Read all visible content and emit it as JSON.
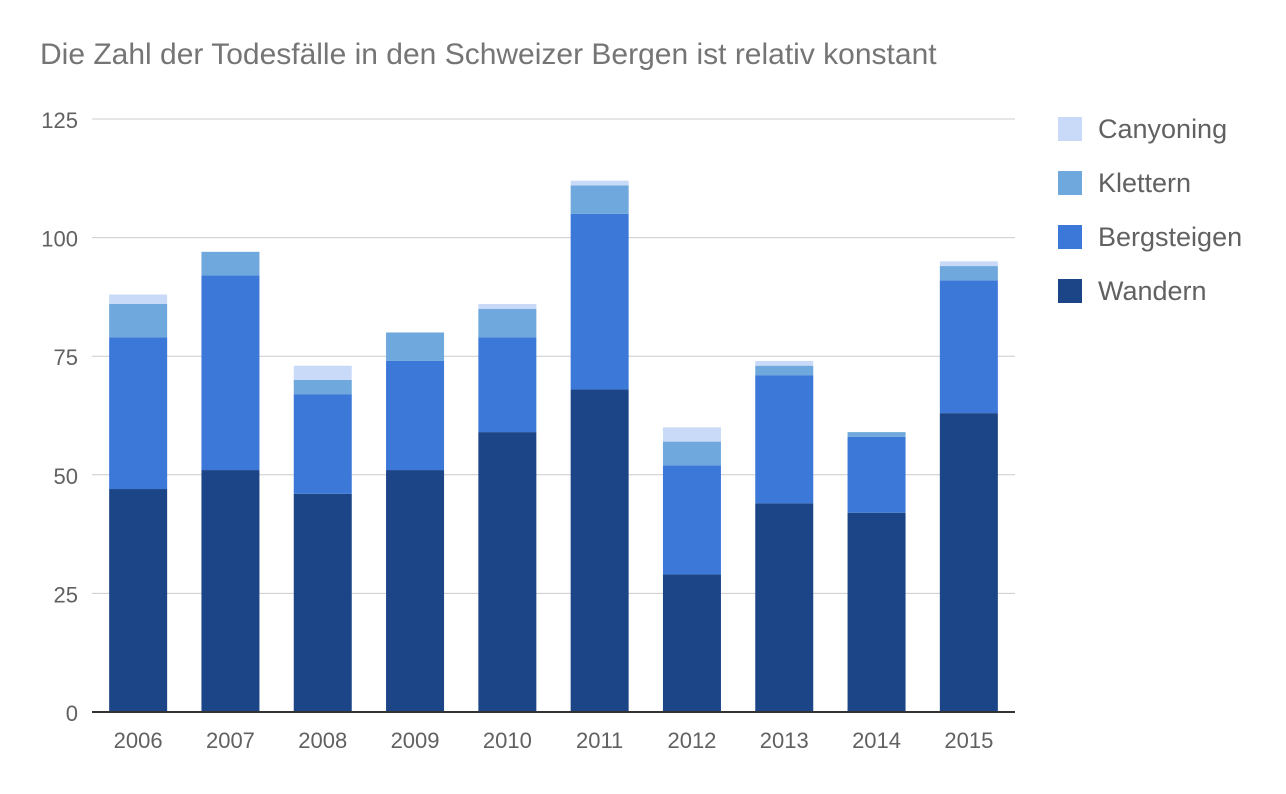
{
  "chart_data": {
    "type": "bar",
    "stacked": true,
    "title": "Die Zahl der Todesfälle in den Schweizer Bergen ist relativ konstant",
    "xlabel": "",
    "ylabel": "",
    "ylim": [
      0,
      125
    ],
    "yticks": [
      "0",
      "25",
      "50",
      "75",
      "100",
      "125"
    ],
    "grid": true,
    "legend_position": "right",
    "categories": [
      "2006",
      "2007",
      "2008",
      "2009",
      "2010",
      "2011",
      "2012",
      "2013",
      "2014",
      "2015"
    ],
    "series": [
      {
        "name": "Wandern",
        "color": "#1c4587",
        "values": [
          47,
          51,
          46,
          51,
          59,
          68,
          29,
          44,
          42,
          63
        ]
      },
      {
        "name": "Bergsteigen",
        "color": "#3c78d8",
        "values": [
          32,
          41,
          21,
          23,
          20,
          37,
          23,
          27,
          16,
          28
        ]
      },
      {
        "name": "Klettern",
        "color": "#6fa8dc",
        "values": [
          7,
          5,
          3,
          6,
          6,
          6,
          5,
          2,
          1,
          3
        ]
      },
      {
        "name": "Canyoning",
        "color": "#c9daf8",
        "values": [
          2,
          0,
          3,
          0,
          1,
          1,
          3,
          1,
          0,
          1
        ]
      }
    ]
  }
}
